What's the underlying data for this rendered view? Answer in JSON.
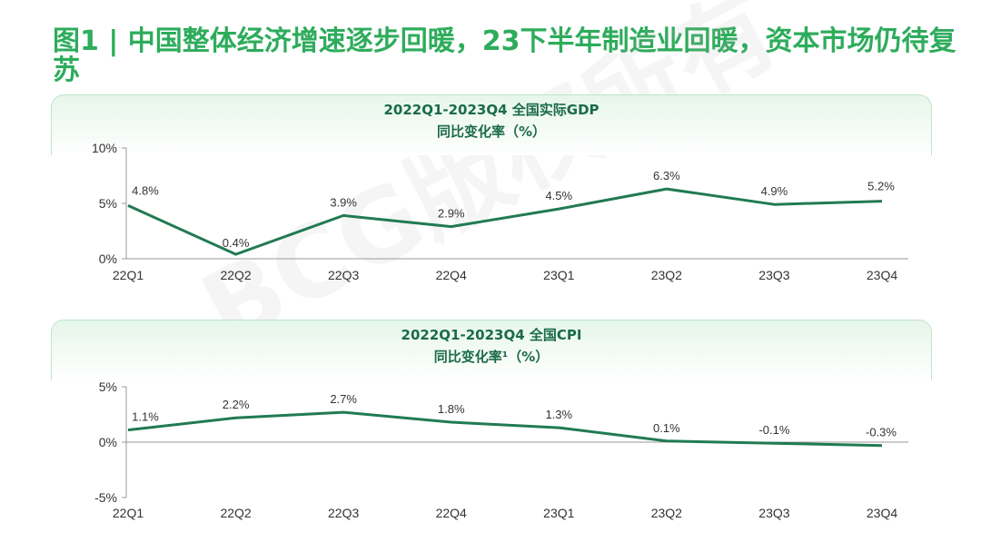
{
  "title": "图1 | 中国整体经济增速逐步回暖，23下半年制造业回暖，资本市场仍待复苏",
  "watermark": "BCG版权所有",
  "colors": {
    "line": "#217a52",
    "title": "#2eac5c",
    "header_text": "#1b6b47"
  },
  "chart_data": [
    {
      "type": "line",
      "title": "2022Q1-2023Q4 全国实际GDP",
      "subtitle": "同比变化率（%）",
      "categories": [
        "22Q1",
        "22Q2",
        "22Q3",
        "22Q4",
        "23Q1",
        "23Q2",
        "23Q3",
        "23Q4"
      ],
      "series": [
        {
          "values": [
            4.8,
            0.4,
            3.9,
            2.9,
            4.5,
            6.3,
            4.9,
            5.2
          ]
        }
      ],
      "data_labels": [
        "4.8%",
        "0.4%",
        "3.9%",
        "2.9%",
        "4.5%",
        "6.3%",
        "4.9%",
        "5.2%"
      ],
      "ylim": [
        0,
        10
      ],
      "yticks": [
        {
          "value": 10,
          "label": "10%"
        },
        {
          "value": 5,
          "label": "5%"
        },
        {
          "value": 0,
          "label": "0%"
        }
      ],
      "grid": false
    },
    {
      "type": "line",
      "title": "2022Q1-2023Q4 全国CPI",
      "subtitle": "同比变化率¹（%）",
      "categories": [
        "22Q1",
        "22Q2",
        "22Q3",
        "22Q4",
        "23Q1",
        "23Q2",
        "23Q3",
        "23Q4"
      ],
      "series": [
        {
          "values": [
            1.1,
            2.2,
            2.7,
            1.8,
            1.3,
            0.1,
            -0.1,
            -0.3
          ]
        }
      ],
      "data_labels": [
        "1.1%",
        "2.2%",
        "2.7%",
        "1.8%",
        "1.3%",
        "0.1%",
        "-0.1%",
        "-0.3%"
      ],
      "ylim": [
        -5,
        5
      ],
      "yticks": [
        {
          "value": 5,
          "label": "5%"
        },
        {
          "value": 0,
          "label": "0%"
        },
        {
          "value": -5,
          "label": "-5%"
        }
      ],
      "grid": false
    }
  ]
}
